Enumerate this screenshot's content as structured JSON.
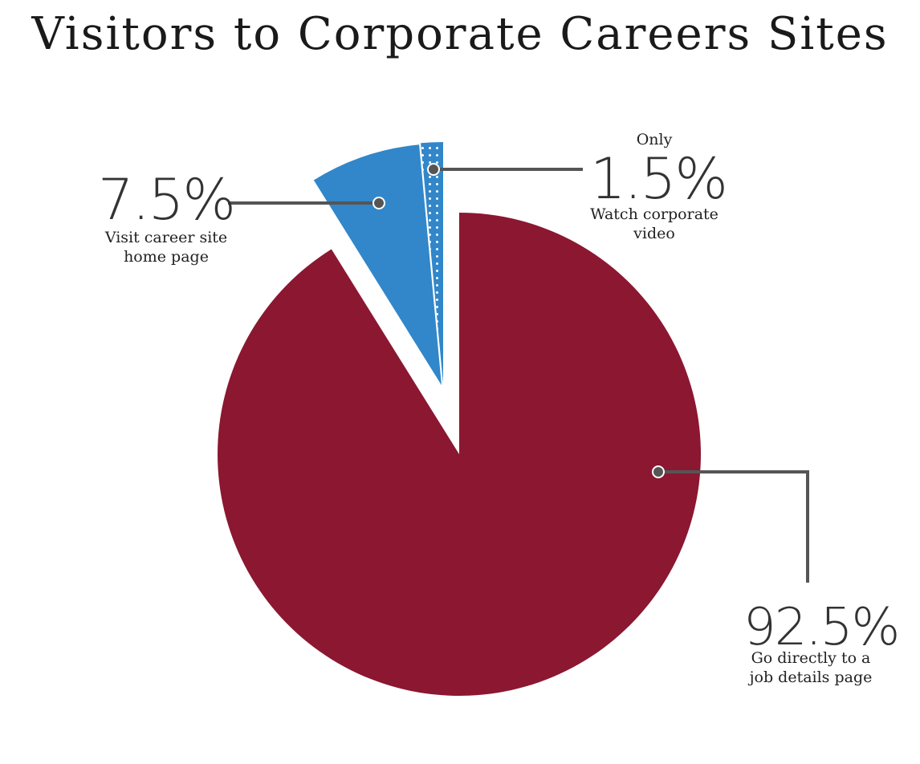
{
  "title": "Visitors to Corporate Careers Sites",
  "colors": {
    "red": "#8B1731",
    "blue": "#3187C9",
    "leader": "#555555"
  },
  "chart_data": {
    "type": "pie",
    "title": "Visitors to Corporate Careers Sites",
    "slices": [
      {
        "label": "Go directly to a job details page",
        "value": 92.5,
        "display": "92.5%",
        "color": "#8B1731",
        "pattern": "solid"
      },
      {
        "label": "Visit career site home page",
        "value": 7.5,
        "display": "7.5%",
        "color": "#3187C9",
        "pattern": "solid"
      },
      {
        "label": "Watch corporate video",
        "value": 1.5,
        "display": "1.5%",
        "color": "#3187C9",
        "pattern": "dots"
      }
    ]
  },
  "labels": {
    "red": {
      "value": "92.5%",
      "line1": "Go directly to a",
      "line2": "job details page"
    },
    "blue": {
      "value": "7.5%",
      "line1": "Visit career site",
      "line2": "home page"
    },
    "dots": {
      "prefix": "Only",
      "value": "1.5%",
      "line1": "Watch corporate",
      "line2": "video"
    }
  }
}
